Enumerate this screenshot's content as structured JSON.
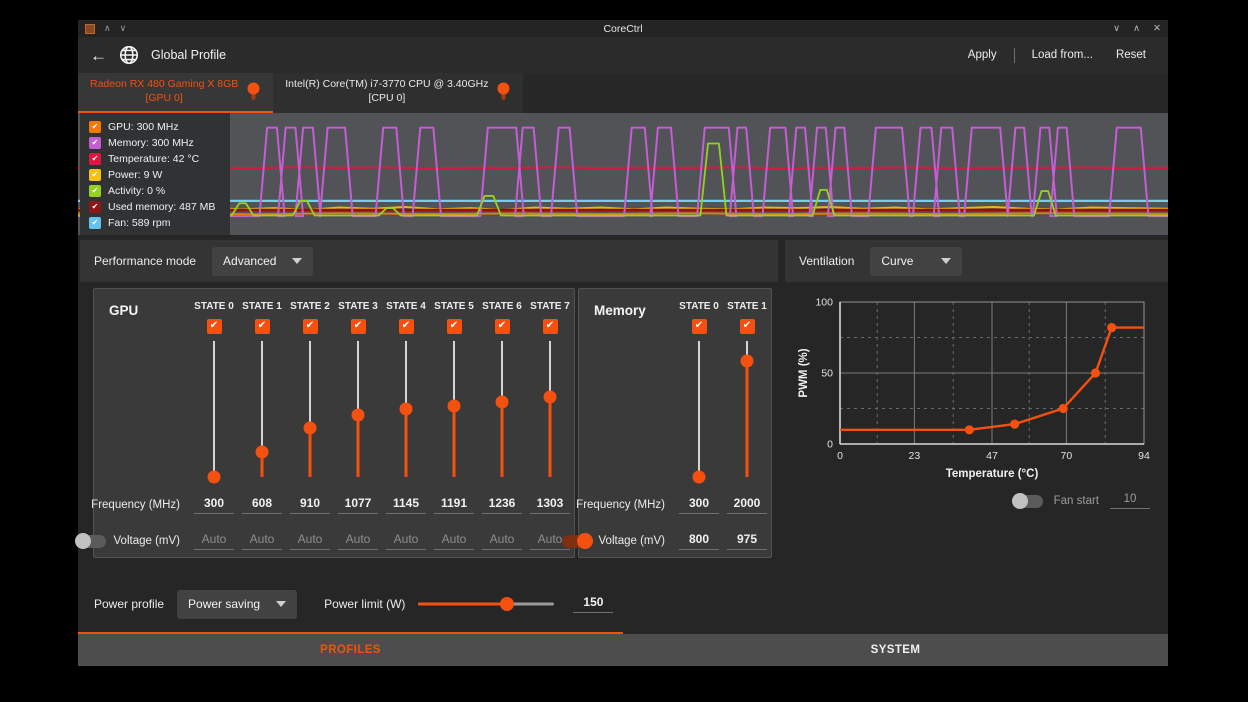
{
  "titlebar": {
    "title": "CoreCtrl",
    "keep_above_icon": "∧",
    "keep_below_icon": "∨",
    "minimize_icon": "∨",
    "maximize_icon": "∧",
    "close_icon": "✕"
  },
  "header": {
    "back_icon": "←",
    "title": "Global Profile",
    "apply_label": "Apply",
    "load_label": "Load from...",
    "reset_label": "Reset"
  },
  "device_tabs": [
    {
      "line1": "Radeon RX 480 Gaming X 8GB",
      "line2": "[GPU 0]",
      "active": true
    },
    {
      "line1": "Intel(R) Core(TM) i7-3770 CPU @ 3.40GHz",
      "line2": "[CPU 0]",
      "active": false
    }
  ],
  "legend": [
    {
      "label": "GPU: 300 MHz",
      "color": "#f57900"
    },
    {
      "label": "Memory: 300 MHz",
      "color": "#c35fd2"
    },
    {
      "label": "Temperature: 42 °C",
      "color": "#e01540"
    },
    {
      "label": "Power: 9 W",
      "color": "#f5c211"
    },
    {
      "label": "Activity: 0 %",
      "color": "#96d120"
    },
    {
      "label": "Used memory: 487 MB",
      "color": "#8e1616"
    },
    {
      "label": "Fan: 589 rpm",
      "color": "#64c3ee"
    }
  ],
  "performance_mode": {
    "label": "Performance mode",
    "value": "Advanced"
  },
  "gpu_panel": {
    "title": "GPU",
    "freq_label": "Frequency (MHz)",
    "volt_label": "Voltage (mV)",
    "voltage_enabled": false,
    "slider_min": 300,
    "slider_max": 2000,
    "states": [
      {
        "label": "STATE 0",
        "checked": true,
        "freq": 300,
        "volt": "Auto"
      },
      {
        "label": "STATE 1",
        "checked": true,
        "freq": 608,
        "volt": "Auto"
      },
      {
        "label": "STATE 2",
        "checked": true,
        "freq": 910,
        "volt": "Auto"
      },
      {
        "label": "STATE 3",
        "checked": true,
        "freq": 1077,
        "volt": "Auto"
      },
      {
        "label": "STATE 4",
        "checked": true,
        "freq": 1145,
        "volt": "Auto"
      },
      {
        "label": "STATE 5",
        "checked": true,
        "freq": 1191,
        "volt": "Auto"
      },
      {
        "label": "STATE 6",
        "checked": true,
        "freq": 1236,
        "volt": "Auto"
      },
      {
        "label": "STATE 7",
        "checked": true,
        "freq": 1303,
        "volt": "Auto"
      }
    ]
  },
  "memory_panel": {
    "title": "Memory",
    "freq_label": "Frequency (MHz)",
    "volt_label": "Voltage (mV)",
    "voltage_enabled": true,
    "slider_min": 300,
    "slider_max": 2300,
    "states": [
      {
        "label": "STATE 0",
        "checked": true,
        "freq": 300,
        "volt": "800"
      },
      {
        "label": "STATE 1",
        "checked": true,
        "freq": 2000,
        "volt": "975"
      }
    ]
  },
  "power": {
    "profile_label": "Power profile",
    "profile_value": "Power saving",
    "limit_label": "Power limit (W)",
    "limit_value": "150",
    "limit_fraction": 0.65
  },
  "ventilation": {
    "label": "Ventilation",
    "mode_value": "Curve",
    "fan_start_label": "Fan start",
    "fan_start_value": "10",
    "fan_start_enabled": false
  },
  "bottom_tabs": [
    {
      "label": "PROFILES",
      "active": true
    },
    {
      "label": "SYSTEM",
      "active": false
    }
  ],
  "chart_data": [
    {
      "id": "fan-curve",
      "type": "line",
      "xlabel": "Temperature (°C)",
      "ylabel": "PWM (%)",
      "xlim": [
        0,
        94
      ],
      "ylim": [
        0,
        100
      ],
      "xticks": [
        0,
        23,
        47,
        70,
        94
      ],
      "yticks": [
        0,
        50,
        100
      ],
      "grid": true,
      "color": "#f4500f",
      "points": [
        [
          0,
          10
        ],
        [
          40,
          10
        ],
        [
          54,
          14
        ],
        [
          69,
          25
        ],
        [
          79,
          50
        ],
        [
          84,
          82
        ],
        [
          94,
          82
        ]
      ],
      "markers": [
        [
          40,
          10
        ],
        [
          54,
          14
        ],
        [
          69,
          25
        ],
        [
          79,
          50
        ],
        [
          84,
          82
        ]
      ]
    },
    {
      "id": "monitor",
      "type": "line",
      "xlim": [
        0,
        100
      ],
      "ylim": [
        0,
        100
      ],
      "series": [
        {
          "name": "Power",
          "color": "#edb900",
          "width": 2,
          "points": [
            [
              0,
              79
            ],
            [
              3,
              77.5
            ],
            [
              6,
              79.5
            ],
            [
              9,
              78
            ],
            [
              12,
              77.5
            ],
            [
              15,
              79
            ],
            [
              18,
              78
            ],
            [
              21,
              79.5
            ],
            [
              24,
              77.5
            ],
            [
              27,
              78.5
            ],
            [
              30,
              77
            ],
            [
              33,
              79
            ],
            [
              36,
              78
            ],
            [
              39,
              79.5
            ],
            [
              42,
              77.5
            ],
            [
              45,
              78.5
            ],
            [
              48,
              77.5
            ],
            [
              51,
              79
            ],
            [
              54,
              77.5
            ],
            [
              57,
              78.5
            ],
            [
              60,
              79
            ],
            [
              63,
              77.5
            ],
            [
              66,
              78
            ],
            [
              69,
              77
            ],
            [
              72,
              78.5
            ],
            [
              75,
              77.5
            ],
            [
              78,
              79
            ],
            [
              81,
              78
            ],
            [
              84,
              77
            ],
            [
              87,
              78.5
            ],
            [
              90,
              79
            ],
            [
              93,
              77.5
            ],
            [
              96,
              78
            ],
            [
              100,
              78.5
            ]
          ]
        },
        {
          "name": "GPU",
          "color": "#f57900",
          "width": 1.8,
          "points": [
            [
              0,
              82.5
            ],
            [
              8,
              82
            ],
            [
              16,
              83
            ],
            [
              24,
              82.2
            ],
            [
              32,
              82.8
            ],
            [
              40,
              82.3
            ],
            [
              48,
              82.8
            ],
            [
              56,
              82.2
            ],
            [
              64,
              82.8
            ],
            [
              72,
              82.3
            ],
            [
              80,
              82.8
            ],
            [
              88,
              82.2
            ],
            [
              100,
              82.6
            ]
          ]
        },
        {
          "name": "Used memory",
          "color": "#8e1010",
          "width": 2.4,
          "points": [
            [
              0,
              79.5
            ],
            [
              100,
              79.5
            ]
          ]
        },
        {
          "name": "Fan",
          "color": "#7accee",
          "width": 2.2,
          "points": [
            [
              0,
              72
            ],
            [
              100,
              72
            ]
          ]
        },
        {
          "name": "Temperature",
          "color": "#e01540",
          "width": 2,
          "points": [
            [
              0,
              45
            ],
            [
              4,
              44.5
            ],
            [
              8,
              45.3
            ],
            [
              12,
              44.8
            ],
            [
              16,
              45.1
            ],
            [
              20,
              44.4
            ],
            [
              24,
              45
            ],
            [
              28,
              44.6
            ],
            [
              32,
              45.2
            ],
            [
              36,
              44.8
            ],
            [
              40,
              45
            ],
            [
              44,
              44.5
            ],
            [
              48,
              45.1
            ],
            [
              52,
              44.8
            ],
            [
              56,
              45
            ],
            [
              60,
              44.5
            ],
            [
              64,
              45.2
            ],
            [
              68,
              44.8
            ],
            [
              72,
              45
            ],
            [
              76,
              44.6
            ],
            [
              80,
              45.1
            ],
            [
              84,
              44.8
            ],
            [
              88,
              45
            ],
            [
              92,
              44.6
            ],
            [
              96,
              45.1
            ],
            [
              100,
              44.9
            ]
          ]
        },
        {
          "name": "Memory",
          "color": "#c35fd2",
          "width": 2,
          "baseline": 84.5,
          "peak": 12,
          "spikes": [
            [
              2.8,
              1.2
            ],
            [
              6.9,
              0.8
            ],
            [
              11.9,
              0.8
            ],
            [
              17.8,
              0.45
            ],
            [
              19.5,
              0.45
            ],
            [
              21.1,
              0.45
            ],
            [
              23.7,
              0.8
            ],
            [
              28.6,
              0.6
            ],
            [
              32.0,
              0.6
            ],
            [
              38.9,
              1.3
            ],
            [
              41.3,
              0.5
            ],
            [
              44.6,
              0.5
            ],
            [
              51.4,
              0.6
            ],
            [
              53.8,
              0.6
            ],
            [
              58.6,
              1.1
            ],
            [
              60.9,
              0.4
            ],
            [
              64.2,
              0.7
            ],
            [
              66.3,
              0.4
            ],
            [
              68.2,
              0.4
            ],
            [
              69.9,
              0.4
            ],
            [
              74.4,
              1.2
            ],
            [
              77.8,
              0.5
            ],
            [
              79.7,
              0.5
            ],
            [
              83.3,
              1.3
            ],
            [
              86.4,
              0.4
            ],
            [
              88.7,
              0.4
            ],
            [
              90.3,
              0.4
            ],
            [
              96.4,
              1.1
            ]
          ]
        },
        {
          "name": "Activity",
          "color": "#96d120",
          "width": 1.8,
          "baseline": 84,
          "spikes": [
            [
              3.3,
              42,
              0.6
            ],
            [
              9.7,
              76,
              0.3
            ],
            [
              15.1,
              74,
              0.3
            ],
            [
              20.7,
              72,
              0.3
            ],
            [
              28.6,
              78,
              0.3
            ],
            [
              37.7,
              68,
              0.4
            ],
            [
              58.3,
              25,
              0.5
            ],
            [
              68.4,
              63,
              0.3
            ],
            [
              88.7,
              64,
              0.3
            ]
          ]
        }
      ]
    }
  ]
}
